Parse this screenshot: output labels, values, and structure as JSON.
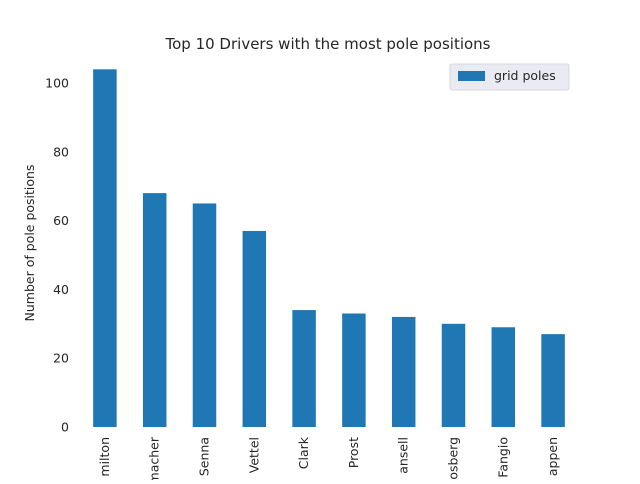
{
  "chart_data": {
    "type": "bar",
    "title": "Top 10 Drivers with the most pole positions",
    "xlabel": "",
    "ylabel": "Number of pole positions",
    "categories": [
      "milton",
      "macher",
      "Senna",
      "Vettel",
      "Clark",
      "Prost",
      "ansell",
      "osberg",
      "Fangio",
      "appen"
    ],
    "series": [
      {
        "name": "grid poles",
        "values": [
          104,
          68,
          65,
          57,
          34,
          33,
          32,
          30,
          29,
          27
        ]
      }
    ],
    "ylim": [
      0,
      107
    ],
    "yticks": [
      0,
      20,
      40,
      60,
      80,
      100
    ],
    "grid": false,
    "legend_position": "top-right",
    "bar_color": "#1f77b4"
  }
}
